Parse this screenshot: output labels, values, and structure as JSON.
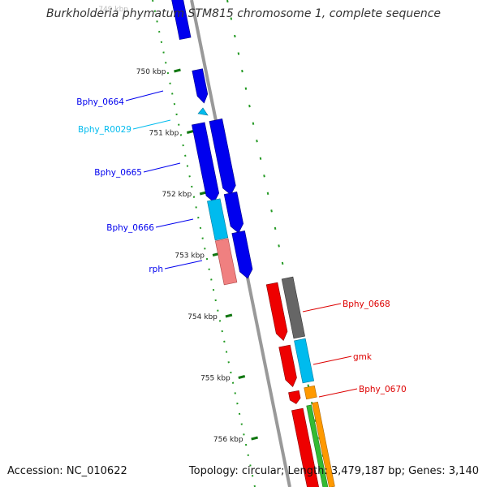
{
  "title": "Burkholderia phymatum STM815 chromosome 1, complete sequence",
  "accession": "Accession: NC_010622",
  "summary": "Topology: circular; Length: 3,479,187 bp; Genes: 3,140",
  "scale": {
    "top_label": "749 kbp",
    "ticks": [
      "750 kbp",
      "751 kbp",
      "752 kbp",
      "753 kbp",
      "754 kbp",
      "755 kbp",
      "756 kbp"
    ]
  },
  "colors": {
    "blue": "#0000ee",
    "cyan": "#00bbee",
    "salmon": "#f08080",
    "red": "#ee0000",
    "gray": "#666666",
    "orange": "#ff9900",
    "green": "#33bb33",
    "backbone": "#999999",
    "tick": "#117711",
    "dot": "#229922"
  },
  "features": [
    {
      "name": "Bphy_0664",
      "color": "#0000ee"
    },
    {
      "name": "Bphy_R0029",
      "color": "#00bbee"
    },
    {
      "name": "Bphy_0665",
      "color": "#0000ee"
    },
    {
      "name": "Bphy_0666",
      "color": "#0000ee"
    },
    {
      "name": "rph",
      "color": "#0000ee"
    },
    {
      "name": "Bphy_0668",
      "color": "#dd0000"
    },
    {
      "name": "gmk",
      "color": "#dd0000"
    },
    {
      "name": "Bphy_0670",
      "color": "#dd0000"
    }
  ]
}
